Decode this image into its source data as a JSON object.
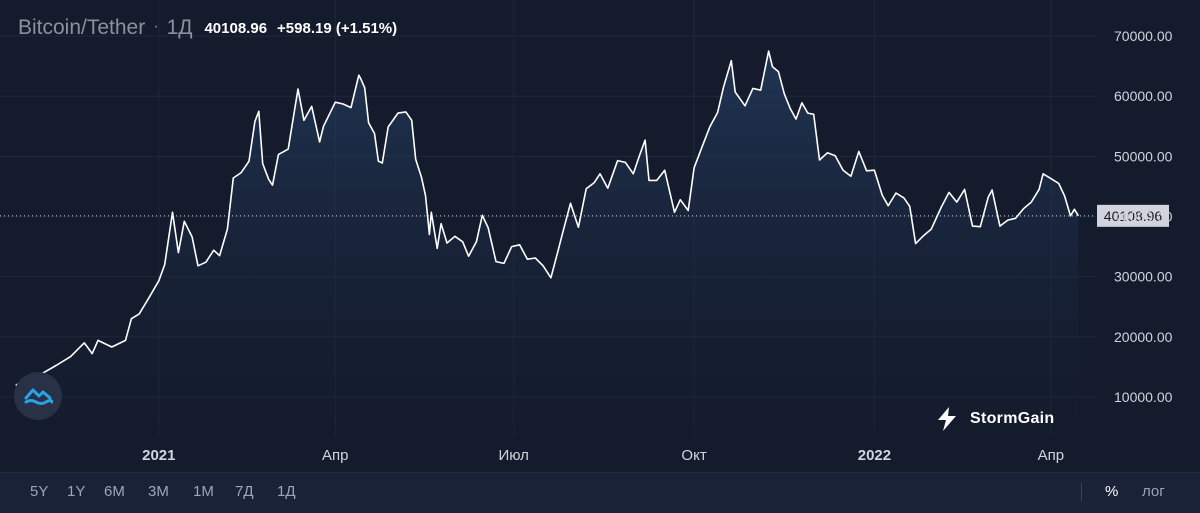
{
  "header": {
    "symbol": "Bitcoin/Tether",
    "separator": "·",
    "interval": "1Д",
    "price": "40108.96",
    "change": "+598.19 (+1.51%)"
  },
  "logo": {
    "text": "StormGain",
    "icon": "stormgain-bolt-icon"
  },
  "floating_button": {
    "icon": "cloud-wave-icon"
  },
  "toolbar": {
    "ranges": [
      "5Y",
      "1Y",
      "6M",
      "3M",
      "1M",
      "7Д",
      "1Д"
    ],
    "percent_label": "%",
    "log_label": "лог"
  },
  "colors": {
    "background": "#141b2d",
    "line": "#ffffff",
    "price_label_bg": "#d1d4dc",
    "axis_text": "#d1d4dc",
    "toolbar_bg": "#192236"
  },
  "chart_data": {
    "type": "area",
    "title": "Bitcoin/Tether",
    "xlabel": "",
    "ylabel": "",
    "ylim": [
      3500,
      76000
    ],
    "y_ticks": [
      10000,
      20000,
      30000,
      40000,
      50000,
      60000,
      70000
    ],
    "y_tick_labels": [
      "10000.00",
      "20000.00",
      "30000.00",
      "40000.00",
      "50000.00",
      "60000.00",
      "70000.00"
    ],
    "x_ticks": [
      {
        "label": "2021",
        "date": "2021-01-01",
        "bold": true
      },
      {
        "label": "Апр",
        "date": "2021-04-01",
        "bold": false
      },
      {
        "label": "Июл",
        "date": "2021-07-01",
        "bold": false
      },
      {
        "label": "Окт",
        "date": "2021-10-01",
        "bold": false
      },
      {
        "label": "2022",
        "date": "2022-01-01",
        "bold": true
      },
      {
        "label": "Апр",
        "date": "2022-04-01",
        "bold": false
      }
    ],
    "last_price": 40108.96,
    "last_price_label": "40108.96",
    "grid": true,
    "series": [
      {
        "points": [
          [
            "2020-10-20",
            11900
          ],
          [
            "2020-10-27",
            13500
          ],
          [
            "2020-11-03",
            14000
          ],
          [
            "2020-11-10",
            15300
          ],
          [
            "2020-11-17",
            16700
          ],
          [
            "2020-11-24",
            19000
          ],
          [
            "2020-11-28",
            17200
          ],
          [
            "2020-12-01",
            19400
          ],
          [
            "2020-12-08",
            18300
          ],
          [
            "2020-12-15",
            19400
          ],
          [
            "2020-12-18",
            23000
          ],
          [
            "2020-12-22",
            23800
          ],
          [
            "2020-12-27",
            26500
          ],
          [
            "2021-01-01",
            29300
          ],
          [
            "2021-01-04",
            32000
          ],
          [
            "2021-01-08",
            40700
          ],
          [
            "2021-01-11",
            34000
          ],
          [
            "2021-01-14",
            39200
          ],
          [
            "2021-01-18",
            36600
          ],
          [
            "2021-01-21",
            31800
          ],
          [
            "2021-01-25",
            32400
          ],
          [
            "2021-01-29",
            34400
          ],
          [
            "2021-02-01",
            33500
          ],
          [
            "2021-02-05",
            37900
          ],
          [
            "2021-02-08",
            46400
          ],
          [
            "2021-02-12",
            47300
          ],
          [
            "2021-02-16",
            49200
          ],
          [
            "2021-02-19",
            55800
          ],
          [
            "2021-02-21",
            57500
          ],
          [
            "2021-02-23",
            48800
          ],
          [
            "2021-02-26",
            46200
          ],
          [
            "2021-02-28",
            45200
          ],
          [
            "2021-03-03",
            50300
          ],
          [
            "2021-03-08",
            51200
          ],
          [
            "2021-03-13",
            61200
          ],
          [
            "2021-03-16",
            56000
          ],
          [
            "2021-03-20",
            58300
          ],
          [
            "2021-03-24",
            52400
          ],
          [
            "2021-03-26",
            55000
          ],
          [
            "2021-04-01",
            59000
          ],
          [
            "2021-04-05",
            58700
          ],
          [
            "2021-04-09",
            58100
          ],
          [
            "2021-04-13",
            63500
          ],
          [
            "2021-04-14",
            62900
          ],
          [
            "2021-04-16",
            61400
          ],
          [
            "2021-04-18",
            55600
          ],
          [
            "2021-04-21",
            53800
          ],
          [
            "2021-04-23",
            49200
          ],
          [
            "2021-04-25",
            48900
          ],
          [
            "2021-04-28",
            54900
          ],
          [
            "2021-05-03",
            57200
          ],
          [
            "2021-05-07",
            57400
          ],
          [
            "2021-05-10",
            56000
          ],
          [
            "2021-05-12",
            49500
          ],
          [
            "2021-05-15",
            46500
          ],
          [
            "2021-05-17",
            43500
          ],
          [
            "2021-05-19",
            37000
          ],
          [
            "2021-05-20",
            40700
          ],
          [
            "2021-05-23",
            34700
          ],
          [
            "2021-05-25",
            38800
          ],
          [
            "2021-05-28",
            35600
          ],
          [
            "2021-06-01",
            36700
          ],
          [
            "2021-06-05",
            35800
          ],
          [
            "2021-06-08",
            33400
          ],
          [
            "2021-06-12",
            35800
          ],
          [
            "2021-06-15",
            40200
          ],
          [
            "2021-06-18",
            38100
          ],
          [
            "2021-06-22",
            32500
          ],
          [
            "2021-06-26",
            32200
          ],
          [
            "2021-06-30",
            35000
          ],
          [
            "2021-07-04",
            35300
          ],
          [
            "2021-07-08",
            32900
          ],
          [
            "2021-07-12",
            33100
          ],
          [
            "2021-07-16",
            31800
          ],
          [
            "2021-07-20",
            29800
          ],
          [
            "2021-07-23",
            33500
          ],
          [
            "2021-07-26",
            37300
          ],
          [
            "2021-07-30",
            42200
          ],
          [
            "2021-08-03",
            38200
          ],
          [
            "2021-08-07",
            44600
          ],
          [
            "2021-08-11",
            45600
          ],
          [
            "2021-08-14",
            47100
          ],
          [
            "2021-08-18",
            44700
          ],
          [
            "2021-08-23",
            49300
          ],
          [
            "2021-08-27",
            49000
          ],
          [
            "2021-08-31",
            47100
          ],
          [
            "2021-09-03",
            50000
          ],
          [
            "2021-09-06",
            52700
          ],
          [
            "2021-09-08",
            46000
          ],
          [
            "2021-09-12",
            46000
          ],
          [
            "2021-09-16",
            47700
          ],
          [
            "2021-09-21",
            40700
          ],
          [
            "2021-09-24",
            42800
          ],
          [
            "2021-09-28",
            41000
          ],
          [
            "2021-10-01",
            48100
          ],
          [
            "2021-10-05",
            51500
          ],
          [
            "2021-10-09",
            54900
          ],
          [
            "2021-10-13",
            57300
          ],
          [
            "2021-10-16",
            61500
          ],
          [
            "2021-10-20",
            65900
          ],
          [
            "2021-10-22",
            60700
          ],
          [
            "2021-10-27",
            58400
          ],
          [
            "2021-10-31",
            61300
          ],
          [
            "2021-11-04",
            61000
          ],
          [
            "2021-11-08",
            67500
          ],
          [
            "2021-11-10",
            64900
          ],
          [
            "2021-11-13",
            64100
          ],
          [
            "2021-11-16",
            60400
          ],
          [
            "2021-11-19",
            58000
          ],
          [
            "2021-11-22",
            56200
          ],
          [
            "2021-11-25",
            58900
          ],
          [
            "2021-11-28",
            57200
          ],
          [
            "2021-12-01",
            57000
          ],
          [
            "2021-12-04",
            49400
          ],
          [
            "2021-12-08",
            50600
          ],
          [
            "2021-12-12",
            50100
          ],
          [
            "2021-12-16",
            47700
          ],
          [
            "2021-12-20",
            46700
          ],
          [
            "2021-12-24",
            50800
          ],
          [
            "2021-12-28",
            47600
          ],
          [
            "2022-01-01",
            47700
          ],
          [
            "2022-01-05",
            43500
          ],
          [
            "2022-01-08",
            41800
          ],
          [
            "2022-01-12",
            43900
          ],
          [
            "2022-01-16",
            43100
          ],
          [
            "2022-01-19",
            41700
          ],
          [
            "2022-01-22",
            35500
          ],
          [
            "2022-01-26",
            36800
          ],
          [
            "2022-01-30",
            37900
          ],
          [
            "2022-02-04",
            41500
          ],
          [
            "2022-02-08",
            44000
          ],
          [
            "2022-02-12",
            42400
          ],
          [
            "2022-02-16",
            44500
          ],
          [
            "2022-02-20",
            38400
          ],
          [
            "2022-02-24",
            38300
          ],
          [
            "2022-02-28",
            43200
          ],
          [
            "2022-03-02",
            44400
          ],
          [
            "2022-03-06",
            38400
          ],
          [
            "2022-03-10",
            39400
          ],
          [
            "2022-03-14",
            39700
          ],
          [
            "2022-03-18",
            41300
          ],
          [
            "2022-03-22",
            42400
          ],
          [
            "2022-03-26",
            44500
          ],
          [
            "2022-03-28",
            47100
          ],
          [
            "2022-04-01",
            46300
          ],
          [
            "2022-04-05",
            45500
          ],
          [
            "2022-04-08",
            43400
          ],
          [
            "2022-04-11",
            40100
          ],
          [
            "2022-04-13",
            41200
          ],
          [
            "2022-04-15",
            40108.96
          ]
        ]
      }
    ]
  }
}
